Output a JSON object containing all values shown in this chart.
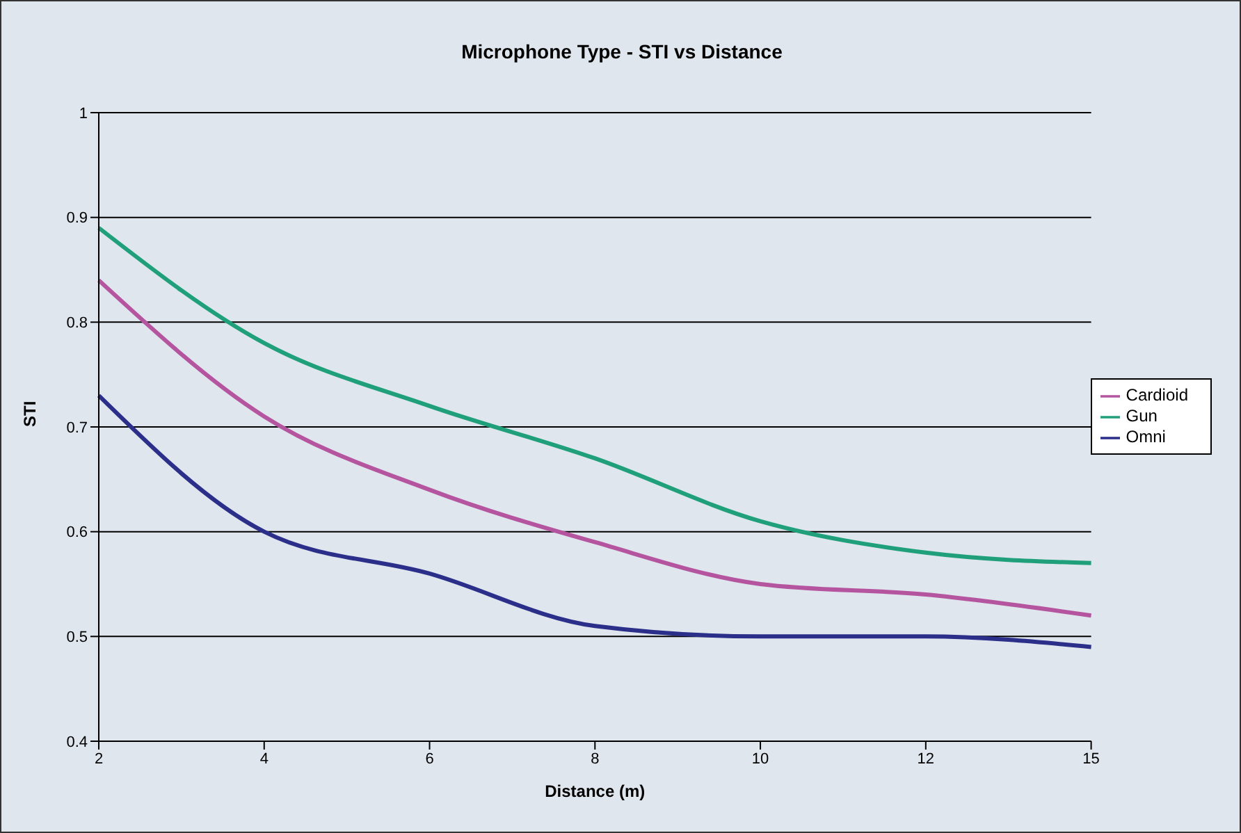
{
  "chart_data": {
    "type": "line",
    "title": "Microphone Type - STI vs Distance",
    "xlabel": "Distance (m)",
    "ylabel": "STI",
    "categories": [
      "2",
      "4",
      "6",
      "8",
      "10",
      "12",
      "15"
    ],
    "series": [
      {
        "name": "Omni",
        "color": "#2b2f8a",
        "values": [
          0.73,
          0.6,
          0.56,
          0.51,
          0.5,
          0.5,
          0.49
        ]
      },
      {
        "name": "Cardioid",
        "color": "#b5559f",
        "values": [
          0.84,
          0.71,
          0.64,
          0.59,
          0.55,
          0.54,
          0.52
        ]
      },
      {
        "name": "Gun",
        "color": "#20a07a",
        "values": [
          0.89,
          0.78,
          0.72,
          0.67,
          0.61,
          0.58,
          0.57
        ]
      }
    ],
    "ylim": [
      0.4,
      1
    ],
    "yticks": [
      0.4,
      0.5,
      0.6,
      0.7,
      0.8,
      0.9,
      1
    ],
    "grid": "y",
    "legend": "right",
    "marker": "none",
    "line_style": "solid"
  }
}
